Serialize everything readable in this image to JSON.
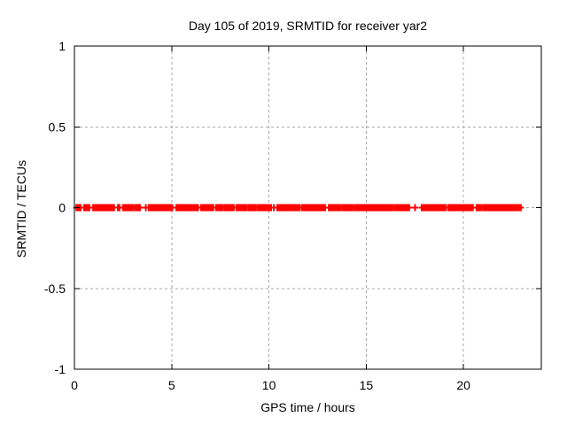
{
  "chart_data": {
    "type": "scatter",
    "title": "Day 105 of 2019, SRMTID for receiver yar2",
    "xlabel": "GPS time / hours",
    "ylabel": "SRMTID / TECUs",
    "xlim": [
      0,
      24
    ],
    "ylim": [
      -1,
      1
    ],
    "xticks": [
      0,
      5,
      10,
      15,
      20
    ],
    "xtick_labels": [
      "0",
      "5",
      "10",
      "15",
      "20"
    ],
    "yticks": [
      -1,
      -0.5,
      0,
      0.5,
      1
    ],
    "ytick_labels": [
      "-1",
      "-0.5",
      "0",
      "0.5",
      "1"
    ],
    "grid": true,
    "legend_position": "none",
    "colors": {
      "marker": "#ff0000",
      "grid": "#a8a8a8",
      "axis": "#000000",
      "text": "#000000",
      "background": "#ffffff"
    },
    "series": [
      {
        "name": "SRMTID",
        "marker": "plus",
        "y_value": 0,
        "x_segments_hours": [
          [
            0.1,
            0.36,
            "dense"
          ],
          [
            0.5,
            0.77,
            "dense"
          ],
          [
            0.96,
            1.41,
            "dense"
          ],
          [
            1.5,
            2.05,
            "dense"
          ],
          [
            2.23,
            2.32,
            "dense"
          ],
          [
            2.5,
            3.05,
            "dense"
          ],
          [
            3.14,
            3.32,
            "dense"
          ],
          [
            3.37,
            3.73,
            "sparse"
          ],
          [
            3.82,
            4.3,
            "dense"
          ],
          [
            4.36,
            5.05,
            "dense"
          ],
          [
            5.24,
            5.8,
            "dense"
          ],
          [
            5.86,
            6.37,
            "dense"
          ],
          [
            6.51,
            7.15,
            "dense"
          ],
          [
            7.28,
            7.68,
            "dense"
          ],
          [
            7.74,
            8.2,
            "dense"
          ],
          [
            8.33,
            8.88,
            "dense"
          ],
          [
            8.97,
            9.34,
            "dense"
          ],
          [
            9.43,
            9.93,
            "dense"
          ],
          [
            10.02,
            10.11,
            "dense"
          ],
          [
            10.25,
            10.34,
            "sparse"
          ],
          [
            10.43,
            10.95,
            "dense"
          ],
          [
            11.0,
            11.61,
            "dense"
          ],
          [
            11.7,
            12.2,
            "dense"
          ],
          [
            12.26,
            12.8,
            "dense"
          ],
          [
            12.89,
            12.98,
            "sparse"
          ],
          [
            13.07,
            13.71,
            "dense"
          ],
          [
            13.8,
            14.07,
            "dense"
          ],
          [
            14.16,
            14.34,
            "dense"
          ],
          [
            14.44,
            14.71,
            "dense"
          ],
          [
            14.8,
            15.3,
            "dense"
          ],
          [
            15.36,
            15.89,
            "dense"
          ],
          [
            15.94,
            16.4,
            "dense"
          ],
          [
            16.49,
            16.67,
            "dense"
          ],
          [
            16.76,
            16.94,
            "dense"
          ],
          [
            17.03,
            17.12,
            "dense"
          ],
          [
            17.21,
            17.76,
            "sparse"
          ],
          [
            17.85,
            17.94,
            "dense"
          ],
          [
            18.03,
            18.55,
            "dense"
          ],
          [
            18.6,
            19.13,
            "dense"
          ],
          [
            19.22,
            19.31,
            "dense"
          ],
          [
            19.4,
            20.49,
            "dense"
          ],
          [
            20.67,
            20.95,
            "dense"
          ],
          [
            21.04,
            21.7,
            "dense"
          ],
          [
            21.76,
            22.3,
            "dense"
          ],
          [
            22.36,
            22.77,
            "dense"
          ],
          [
            22.86,
            22.95,
            "dense"
          ]
        ]
      }
    ]
  }
}
